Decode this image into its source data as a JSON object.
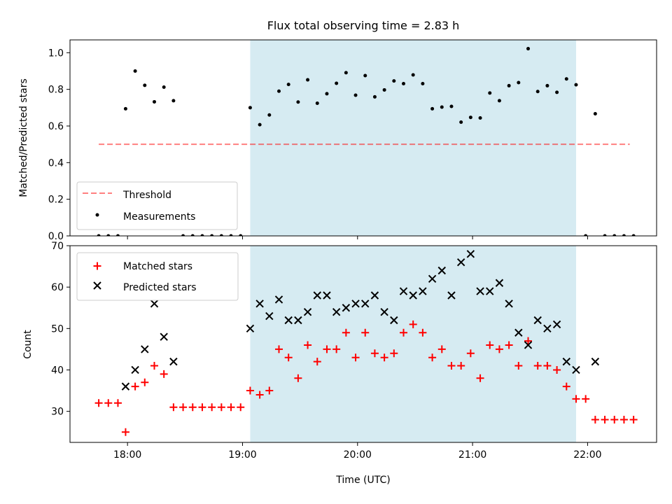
{
  "figure": {
    "title": "Flux total observing time = 2.83 h",
    "xlabel": "Time (UTC)"
  },
  "colors": {
    "observing_window": "#add8e6",
    "threshold": "#ff0000",
    "measurements": "#000000",
    "matched": "#ff0000",
    "predicted": "#000000"
  },
  "chart_data": [
    {
      "type": "scatter",
      "panel": "top",
      "ylabel": "Matched/Predicted stars",
      "xlim": [
        "17:30",
        "22:36"
      ],
      "ylim": [
        0,
        1.07
      ],
      "x_ticks": [
        "18:00",
        "19:00",
        "20:00",
        "21:00",
        "22:00"
      ],
      "y_ticks": [
        "0.0",
        "0.2",
        "0.4",
        "0.6",
        "0.8",
        "1.0"
      ],
      "y_tick_values": [
        0,
        0.2,
        0.4,
        0.6,
        0.8,
        1.0
      ],
      "shaded_span": [
        "19:04",
        "21:54"
      ],
      "legend_position": "lower left",
      "threshold": {
        "name": "Threshold",
        "value": 0.5,
        "x_range": [
          "17:45",
          "22:22"
        ],
        "style": "dashed"
      },
      "series": [
        {
          "name": "Measurements",
          "marker": "dot",
          "points": [
            [
              "17:45",
              0.0
            ],
            [
              "17:50",
              0.0
            ],
            [
              "17:55",
              0.0
            ],
            [
              "17:59",
              0.694
            ],
            [
              "18:04",
              0.9
            ],
            [
              "18:09",
              0.822
            ],
            [
              "18:14",
              0.732
            ],
            [
              "18:19",
              0.812
            ],
            [
              "18:24",
              0.738
            ],
            [
              "18:29",
              0.0
            ],
            [
              "18:34",
              0.0
            ],
            [
              "18:39",
              0.0
            ],
            [
              "18:44",
              0.0
            ],
            [
              "18:49",
              0.0
            ],
            [
              "18:54",
              0.0
            ],
            [
              "18:59",
              0.0
            ],
            [
              "19:04",
              0.7
            ],
            [
              "19:09",
              0.607
            ],
            [
              "19:14",
              0.66
            ],
            [
              "19:19",
              0.79
            ],
            [
              "19:24",
              0.827
            ],
            [
              "19:29",
              0.731
            ],
            [
              "19:34",
              0.852
            ],
            [
              "19:39",
              0.724
            ],
            [
              "19:44",
              0.776
            ],
            [
              "19:49",
              0.833
            ],
            [
              "19:54",
              0.891
            ],
            [
              "19:59",
              0.768
            ],
            [
              "20:04",
              0.875
            ],
            [
              "20:09",
              0.759
            ],
            [
              "20:14",
              0.797
            ],
            [
              "20:19",
              0.846
            ],
            [
              "20:24",
              0.831
            ],
            [
              "20:29",
              0.879
            ],
            [
              "20:34",
              0.831
            ],
            [
              "20:39",
              0.694
            ],
            [
              "20:44",
              0.703
            ],
            [
              "20:49",
              0.707
            ],
            [
              "20:54",
              0.621
            ],
            [
              "20:59",
              0.647
            ],
            [
              "21:04",
              0.644
            ],
            [
              "21:09",
              0.78
            ],
            [
              "21:14",
              0.738
            ],
            [
              "21:19",
              0.82
            ],
            [
              "21:24",
              0.837
            ],
            [
              "21:29",
              1.022
            ],
            [
              "21:34",
              0.788
            ],
            [
              "21:39",
              0.82
            ],
            [
              "21:44",
              0.784
            ],
            [
              "21:49",
              0.857
            ],
            [
              "21:54",
              0.825
            ],
            [
              "21:59",
              0.0
            ],
            [
              "22:04",
              0.667
            ],
            [
              "22:09",
              0.0
            ],
            [
              "22:14",
              0.0
            ],
            [
              "22:19",
              0.0
            ],
            [
              "22:24",
              0.0
            ]
          ]
        }
      ]
    },
    {
      "type": "scatter",
      "panel": "bottom",
      "ylabel": "Count",
      "xlim": [
        "17:30",
        "22:36"
      ],
      "ylim": [
        22.5,
        70
      ],
      "x_ticks": [
        "18:00",
        "19:00",
        "20:00",
        "21:00",
        "22:00"
      ],
      "y_ticks": [
        "30",
        "40",
        "50",
        "60",
        "70"
      ],
      "y_tick_values": [
        30,
        40,
        50,
        60,
        70
      ],
      "shaded_span": [
        "19:04",
        "21:54"
      ],
      "legend_position": "upper left",
      "series": [
        {
          "name": "Matched stars",
          "marker": "plus",
          "points": [
            [
              "17:45",
              32
            ],
            [
              "17:50",
              32
            ],
            [
              "17:55",
              32
            ],
            [
              "17:59",
              25
            ],
            [
              "18:04",
              36
            ],
            [
              "18:09",
              37
            ],
            [
              "18:14",
              41
            ],
            [
              "18:19",
              39
            ],
            [
              "18:24",
              31
            ],
            [
              "18:29",
              31
            ],
            [
              "18:34",
              31
            ],
            [
              "18:39",
              31
            ],
            [
              "18:44",
              31
            ],
            [
              "18:49",
              31
            ],
            [
              "18:54",
              31
            ],
            [
              "18:59",
              31
            ],
            [
              "19:04",
              35
            ],
            [
              "19:09",
              34
            ],
            [
              "19:14",
              35
            ],
            [
              "19:19",
              45
            ],
            [
              "19:24",
              43
            ],
            [
              "19:29",
              38
            ],
            [
              "19:34",
              46
            ],
            [
              "19:39",
              42
            ],
            [
              "19:44",
              45
            ],
            [
              "19:49",
              45
            ],
            [
              "19:54",
              49
            ],
            [
              "19:59",
              43
            ],
            [
              "20:04",
              49
            ],
            [
              "20:09",
              44
            ],
            [
              "20:14",
              43
            ],
            [
              "20:19",
              44
            ],
            [
              "20:24",
              49
            ],
            [
              "20:29",
              51
            ],
            [
              "20:34",
              49
            ],
            [
              "20:39",
              43
            ],
            [
              "20:44",
              45
            ],
            [
              "20:49",
              41
            ],
            [
              "20:54",
              41
            ],
            [
              "20:59",
              44
            ],
            [
              "21:04",
              38
            ],
            [
              "21:09",
              46
            ],
            [
              "21:14",
              45
            ],
            [
              "21:19",
              46
            ],
            [
              "21:24",
              41
            ],
            [
              "21:29",
              47
            ],
            [
              "21:34",
              41
            ],
            [
              "21:39",
              41
            ],
            [
              "21:44",
              40
            ],
            [
              "21:49",
              36
            ],
            [
              "21:54",
              33
            ],
            [
              "21:59",
              33
            ],
            [
              "22:04",
              28
            ],
            [
              "22:09",
              28
            ],
            [
              "22:14",
              28
            ],
            [
              "22:19",
              28
            ],
            [
              "22:24",
              28
            ]
          ]
        },
        {
          "name": "Predicted stars",
          "marker": "x",
          "points": [
            [
              "17:59",
              36
            ],
            [
              "18:04",
              40
            ],
            [
              "18:09",
              45
            ],
            [
              "18:14",
              56
            ],
            [
              "18:19",
              48
            ],
            [
              "18:24",
              42
            ],
            [
              "19:04",
              50
            ],
            [
              "19:09",
              56
            ],
            [
              "19:14",
              53
            ],
            [
              "19:19",
              57
            ],
            [
              "19:24",
              52
            ],
            [
              "19:29",
              52
            ],
            [
              "19:34",
              54
            ],
            [
              "19:39",
              58
            ],
            [
              "19:44",
              58
            ],
            [
              "19:49",
              54
            ],
            [
              "19:54",
              55
            ],
            [
              "19:59",
              56
            ],
            [
              "20:04",
              56
            ],
            [
              "20:09",
              58
            ],
            [
              "20:14",
              54
            ],
            [
              "20:19",
              52
            ],
            [
              "20:24",
              59
            ],
            [
              "20:29",
              58
            ],
            [
              "20:34",
              59
            ],
            [
              "20:39",
              62
            ],
            [
              "20:44",
              64
            ],
            [
              "20:49",
              58
            ],
            [
              "20:54",
              66
            ],
            [
              "20:59",
              68
            ],
            [
              "21:04",
              59
            ],
            [
              "21:09",
              59
            ],
            [
              "21:14",
              61
            ],
            [
              "21:19",
              56
            ],
            [
              "21:24",
              49
            ],
            [
              "21:29",
              46
            ],
            [
              "21:34",
              52
            ],
            [
              "21:39",
              50
            ],
            [
              "21:44",
              51
            ],
            [
              "21:49",
              42
            ],
            [
              "21:54",
              40
            ],
            [
              "22:04",
              42
            ]
          ]
        }
      ]
    }
  ]
}
